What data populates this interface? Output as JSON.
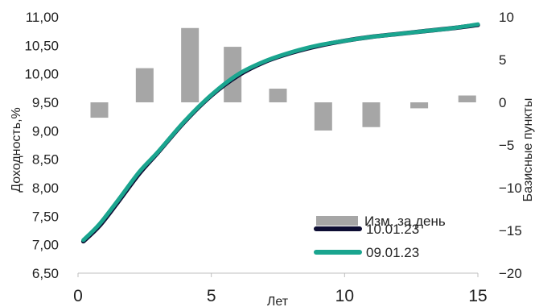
{
  "chart_data": {
    "type": "bar+line",
    "title": "",
    "xlabel": "Лет",
    "ylabel_left": "Доходность,%",
    "ylabel_right": "Базисные пункты",
    "x_ticks": [
      0,
      5,
      10,
      15
    ],
    "xlim": [
      0,
      15
    ],
    "y_left_ticks": [
      "6,50",
      "7,00",
      "7,50",
      "8,00",
      "8,50",
      "9,00",
      "9,50",
      "10,00",
      "10,50",
      "11,00"
    ],
    "ylim_left": [
      6.5,
      11.0
    ],
    "y_right_ticks": [
      "-20",
      "-15",
      "-10",
      "-5",
      "0",
      "5",
      "10"
    ],
    "ylim_right": [
      -20,
      10
    ],
    "grid": false,
    "legend_position": "bottom-right",
    "series": [
      {
        "name": "Изм. за день",
        "kind": "bar",
        "axis": "right",
        "color": "#a6a6a6",
        "x": [
          0.8,
          2.5,
          4.2,
          5.8,
          7.5,
          9.2,
          11.0,
          12.8,
          14.6
        ],
        "values": [
          -1.8,
          4.0,
          8.7,
          6.5,
          1.6,
          -3.3,
          -2.9,
          -0.7,
          0.8
        ]
      },
      {
        "name": "10.01.23",
        "kind": "line",
        "axis": "left",
        "color": "#0d0d33",
        "x": [
          0.2,
          0.8,
          1.5,
          2.3,
          3.0,
          4.0,
          5.0,
          6.0,
          7.0,
          8.0,
          9.0,
          10.0,
          11.0,
          12.0,
          13.0,
          14.0,
          15.0
        ],
        "values": [
          7.06,
          7.33,
          7.75,
          8.25,
          8.62,
          9.16,
          9.62,
          9.97,
          10.21,
          10.37,
          10.49,
          10.58,
          10.65,
          10.7,
          10.75,
          10.8,
          10.86
        ]
      },
      {
        "name": "09.01.23",
        "kind": "line",
        "axis": "left",
        "color": "#1aa58f",
        "x": [
          0.2,
          0.8,
          1.5,
          2.3,
          3.0,
          4.0,
          5.0,
          6.0,
          7.0,
          8.0,
          9.0,
          10.0,
          11.0,
          12.0,
          13.0,
          14.0,
          15.0
        ],
        "values": [
          7.08,
          7.36,
          7.78,
          8.28,
          8.63,
          9.17,
          9.63,
          9.99,
          10.22,
          10.38,
          10.5,
          10.58,
          10.65,
          10.7,
          10.75,
          10.8,
          10.87
        ]
      }
    ]
  }
}
